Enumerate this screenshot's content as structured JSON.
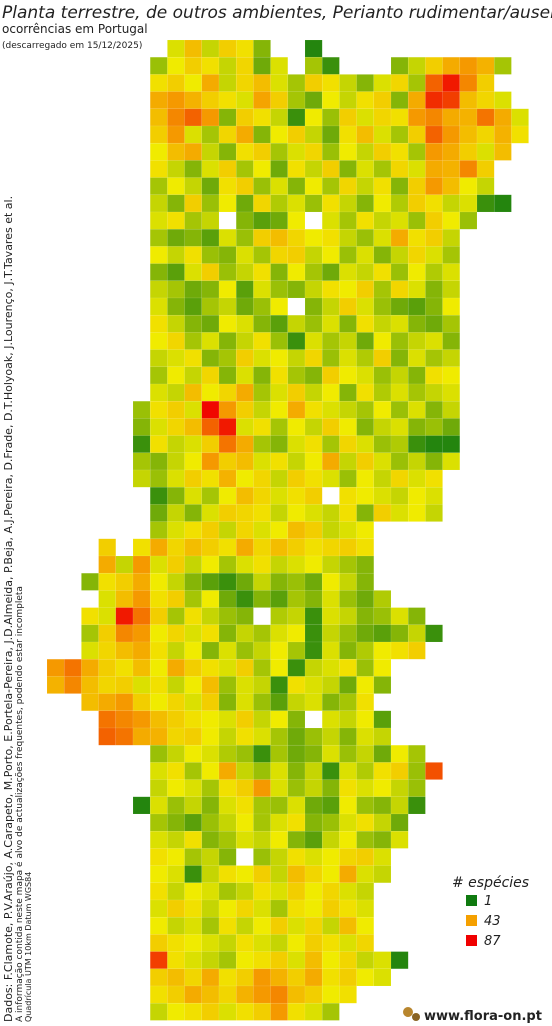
{
  "header": {
    "title": "Planta terrestre, de outros ambientes, Perianto rudimentar/ausente ou",
    "subtitle": "ocorrências em Portugal",
    "date": "(descarregado em 15/12/2025)"
  },
  "credits": [
    "Dados: F.Clamote, P.V.Araújo, A.Carapeto, M.Porto, E.Portela-Pereira, J.D.Almeida, P.Beja, A.J.Pereira, D.Frade, D.T.Holyoak, J.Lourenço, J.T.Tavares et al.",
    "A informação contida neste mapa é alvo de actualizações frequentes, podendo estar incompleta",
    "Quadrícula UTM 10km Datum WGS84"
  ],
  "legend": {
    "title": "# espécies",
    "items": [
      {
        "value": 1,
        "color": "#0f7a0f"
      },
      {
        "value": 43,
        "color": "#f5a000"
      },
      {
        "value": 87,
        "color": "#f00000"
      }
    ]
  },
  "logo": "www.flora-on.pt",
  "map": {
    "cells": [
      [
        null,
        null,
        null,
        null,
        null,
        null,
        null,
        20,
        35,
        18,
        30,
        25,
        12,
        null,
        null,
        3
      ],
      [
        null,
        null,
        null,
        null,
        null,
        null,
        14,
        22,
        30,
        25,
        18,
        28,
        10,
        20,
        null,
        15,
        5,
        null,
        null,
        null,
        12,
        18,
        30,
        40,
        45,
        38,
        15
      ],
      [
        null,
        null,
        null,
        null,
        null,
        null,
        25,
        30,
        22,
        40,
        18,
        28,
        35,
        20,
        15,
        30,
        25,
        18,
        12,
        20,
        28,
        15,
        60,
        80,
        50,
        30
      ],
      [
        null,
        null,
        null,
        null,
        null,
        null,
        40,
        45,
        38,
        30,
        25,
        20,
        42,
        30,
        15,
        10,
        22,
        18,
        25,
        30,
        12,
        40,
        75,
        70,
        35,
        28,
        20
      ],
      [
        null,
        null,
        null,
        null,
        null,
        null,
        35,
        50,
        60,
        45,
        12,
        30,
        25,
        18,
        5,
        22,
        14,
        30,
        20,
        28,
        25,
        45,
        50,
        40,
        38,
        55,
        40,
        20
      ],
      [
        null,
        null,
        null,
        null,
        null,
        null,
        30,
        45,
        20,
        15,
        28,
        40,
        12,
        22,
        30,
        18,
        10,
        25,
        35,
        20,
        15,
        30,
        60,
        45,
        35,
        28,
        38,
        25
      ],
      [
        null,
        null,
        null,
        null,
        null,
        null,
        22,
        35,
        40,
        18,
        12,
        25,
        30,
        15,
        20,
        28,
        14,
        22,
        18,
        30,
        25,
        15,
        45,
        40,
        30,
        20,
        35
      ],
      [
        null,
        null,
        null,
        null,
        null,
        null,
        25,
        18,
        12,
        20,
        30,
        15,
        22,
        10,
        25,
        18,
        30,
        12,
        20,
        15,
        28,
        20,
        40,
        38,
        50,
        30
      ],
      [
        null,
        null,
        null,
        null,
        null,
        null,
        15,
        22,
        18,
        10,
        25,
        30,
        14,
        20,
        12,
        22,
        15,
        28,
        18,
        25,
        12,
        30,
        45,
        35,
        22,
        18
      ],
      [
        null,
        null,
        null,
        null,
        null,
        null,
        18,
        12,
        30,
        14,
        22,
        10,
        28,
        16,
        20,
        14,
        25,
        18,
        12,
        22,
        16,
        30,
        25,
        18,
        20,
        5,
        3
      ],
      [
        null,
        null,
        null,
        null,
        null,
        null,
        20,
        25,
        15,
        18,
        null,
        12,
        8,
        10,
        22,
        null,
        20,
        15,
        25,
        18,
        20,
        14,
        30,
        22,
        14
      ],
      [
        null,
        null,
        null,
        null,
        null,
        null,
        15,
        10,
        12,
        8,
        20,
        14,
        30,
        35,
        28,
        22,
        25,
        18,
        14,
        20,
        40,
        25,
        30,
        18
      ],
      [
        null,
        null,
        null,
        null,
        null,
        null,
        22,
        18,
        25,
        14,
        12,
        20,
        15,
        28,
        30,
        18,
        22,
        14,
        20,
        12,
        18,
        28,
        20,
        15
      ],
      [
        null,
        null,
        null,
        null,
        null,
        null,
        12,
        8,
        20,
        30,
        14,
        18,
        25,
        12,
        22,
        15,
        10,
        20,
        18,
        25,
        14,
        22,
        16,
        20
      ],
      [
        null,
        null,
        null,
        null,
        null,
        null,
        18,
        15,
        10,
        12,
        22,
        8,
        20,
        14,
        12,
        18,
        25,
        22,
        30,
        15,
        28,
        20,
        12,
        18
      ],
      [
        null,
        null,
        null,
        null,
        null,
        null,
        20,
        12,
        8,
        15,
        18,
        10,
        14,
        22,
        null,
        12,
        18,
        30,
        20,
        14,
        10,
        8,
        12,
        22
      ],
      [
        null,
        null,
        null,
        null,
        null,
        null,
        25,
        18,
        12,
        10,
        22,
        20,
        12,
        8,
        18,
        14,
        20,
        12,
        25,
        18,
        20,
        12,
        10,
        15
      ],
      [
        null,
        null,
        null,
        null,
        null,
        null,
        22,
        28,
        15,
        20,
        12,
        18,
        25,
        14,
        5,
        20,
        15,
        18,
        10,
        22,
        14,
        18,
        20,
        12
      ],
      [
        null,
        null,
        null,
        null,
        null,
        null,
        18,
        20,
        25,
        12,
        15,
        30,
        20,
        22,
        18,
        28,
        14,
        20,
        16,
        30,
        12,
        20,
        15,
        18
      ],
      [
        null,
        null,
        null,
        null,
        null,
        null,
        15,
        22,
        18,
        28,
        12,
        20,
        12,
        25,
        15,
        12,
        30,
        22,
        20,
        14,
        18,
        12,
        25,
        22
      ],
      [
        null,
        null,
        null,
        null,
        null,
        null,
        20,
        18,
        35,
        22,
        28,
        40,
        15,
        20,
        30,
        18,
        22,
        12,
        25,
        16,
        20,
        15,
        18,
        20
      ],
      [
        null,
        null,
        null,
        null,
        null,
        14,
        25,
        30,
        20,
        85,
        45,
        30,
        18,
        22,
        40,
        25,
        20,
        18,
        15,
        22,
        14,
        20,
        12,
        18
      ],
      [
        null,
        null,
        null,
        null,
        null,
        12,
        20,
        28,
        35,
        60,
        80,
        20,
        25,
        15,
        22,
        18,
        30,
        22,
        12,
        18,
        20,
        12,
        14,
        10
      ],
      [
        null,
        null,
        null,
        null,
        null,
        5,
        25,
        18,
        20,
        30,
        55,
        40,
        15,
        12,
        20,
        25,
        15,
        28,
        20,
        14,
        16,
        5,
        3,
        3
      ],
      [
        null,
        null,
        null,
        null,
        null,
        15,
        12,
        18,
        22,
        45,
        30,
        35,
        20,
        25,
        18,
        22,
        40,
        18,
        30,
        20,
        14,
        18,
        12,
        20
      ],
      [
        null,
        null,
        null,
        null,
        null,
        18,
        14,
        20,
        30,
        25,
        38,
        22,
        28,
        18,
        30,
        25,
        20,
        14,
        22,
        18,
        28,
        20,
        25,
        null
      ],
      [
        null,
        null,
        null,
        null,
        null,
        null,
        5,
        12,
        20,
        15,
        22,
        35,
        28,
        20,
        25,
        30,
        null,
        25,
        22,
        20,
        18,
        22,
        20
      ],
      [
        null,
        null,
        null,
        null,
        null,
        null,
        10,
        18,
        12,
        20,
        30,
        28,
        25,
        18,
        22,
        20,
        18,
        25,
        12,
        30,
        20,
        22,
        18
      ],
      [
        null,
        null,
        null,
        null,
        null,
        null,
        15,
        20,
        25,
        30,
        18,
        28,
        20,
        22,
        35,
        30,
        18,
        20,
        22,
        null
      ],
      [
        null,
        null,
        null,
        30,
        null,
        25,
        40,
        28,
        35,
        30,
        25,
        40,
        28,
        35,
        30,
        25,
        28,
        30,
        25,
        null
      ],
      [
        null,
        null,
        null,
        40,
        18,
        45,
        20,
        30,
        18,
        22,
        15,
        20,
        25,
        18,
        20,
        22,
        18,
        15,
        12,
        null
      ],
      [
        null,
        null,
        12,
        25,
        30,
        40,
        22,
        18,
        12,
        8,
        5,
        10,
        18,
        12,
        14,
        10,
        22,
        18,
        12
      ],
      [
        null,
        null,
        null,
        20,
        35,
        45,
        25,
        30,
        15,
        22,
        10,
        5,
        12,
        8,
        15,
        12,
        20,
        14,
        10,
        16
      ],
      [
        null,
        null,
        25,
        20,
        80,
        55,
        30,
        15,
        25,
        18,
        14,
        12,
        null,
        16,
        18,
        5,
        20,
        18,
        12,
        14,
        20,
        12
      ],
      [
        null,
        null,
        15,
        30,
        50,
        45,
        22,
        28,
        20,
        25,
        12,
        18,
        15,
        20,
        22,
        5,
        18,
        14,
        10,
        8,
        12,
        18,
        5
      ],
      [
        null,
        null,
        20,
        28,
        35,
        40,
        25,
        18,
        22,
        12,
        20,
        14,
        18,
        22,
        15,
        5,
        20,
        12,
        16,
        22,
        25,
        30
      ],
      [
        45,
        55,
        40,
        30,
        25,
        35,
        22,
        40,
        30,
        25,
        20,
        30,
        15,
        22,
        5,
        18,
        20,
        25,
        14,
        22
      ],
      [
        38,
        50,
        35,
        28,
        30,
        20,
        25,
        18,
        22,
        35,
        14,
        20,
        18,
        5,
        25,
        20,
        18,
        10,
        22,
        12
      ],
      [
        null,
        null,
        35,
        40,
        45,
        30,
        22,
        28,
        20,
        30,
        12,
        20,
        14,
        8,
        18,
        20,
        12,
        15,
        25
      ],
      [
        null,
        null,
        null,
        55,
        50,
        45,
        35,
        30,
        25,
        22,
        20,
        30,
        18,
        22,
        12,
        null,
        20,
        18,
        22,
        8
      ],
      [
        null,
        null,
        null,
        60,
        55,
        40,
        38,
        28,
        30,
        22,
        18,
        25,
        20,
        15,
        10,
        14,
        18,
        12,
        20,
        18
      ],
      [
        null,
        null,
        null,
        null,
        null,
        null,
        14,
        18,
        22,
        20,
        16,
        14,
        5,
        15,
        10,
        12,
        20,
        14,
        18,
        10,
        22,
        15
      ],
      [
        null,
        null,
        null,
        null,
        null,
        null,
        20,
        25,
        15,
        22,
        40,
        18,
        14,
        20,
        12,
        18,
        5,
        20,
        16,
        25,
        30,
        14,
        65
      ],
      [
        null,
        null,
        null,
        null,
        null,
        null,
        18,
        22,
        20,
        15,
        25,
        30,
        45,
        20,
        14,
        18,
        12,
        25,
        20,
        22,
        18,
        14
      ],
      [
        null,
        null,
        null,
        null,
        null,
        3,
        20,
        14,
        18,
        12,
        20,
        25,
        15,
        14,
        20,
        10,
        8,
        22,
        14,
        12,
        18,
        5
      ],
      [
        null,
        null,
        null,
        null,
        null,
        null,
        15,
        12,
        8,
        14,
        18,
        22,
        15,
        20,
        25,
        12,
        14,
        20,
        25,
        18,
        10
      ],
      [
        null,
        null,
        null,
        null,
        null,
        null,
        20,
        18,
        25,
        12,
        15,
        20,
        18,
        22,
        12,
        8,
        18,
        22,
        14,
        12,
        20
      ],
      [
        null,
        null,
        null,
        null,
        null,
        null,
        25,
        22,
        15,
        18,
        12,
        null,
        14,
        18,
        25,
        20,
        22,
        28,
        30,
        20
      ],
      [
        null,
        null,
        null,
        null,
        null,
        null,
        22,
        20,
        5,
        18,
        25,
        22,
        30,
        18,
        35,
        28,
        22,
        40,
        20,
        18
      ],
      [
        null,
        null,
        null,
        null,
        null,
        null,
        25,
        18,
        22,
        20,
        15,
        18,
        25,
        20,
        30,
        22,
        28,
        20,
        18
      ],
      [
        null,
        null,
        null,
        null,
        null,
        null,
        20,
        30,
        25,
        18,
        22,
        28,
        20,
        15,
        25,
        22,
        30,
        25,
        20
      ],
      [
        null,
        null,
        null,
        null,
        null,
        null,
        22,
        18,
        20,
        15,
        25,
        18,
        22,
        30,
        20,
        28,
        18,
        35,
        22
      ],
      [
        null,
        null,
        null,
        null,
        null,
        null,
        30,
        25,
        22,
        20,
        18,
        25,
        20,
        18,
        22,
        30,
        25,
        20,
        28
      ],
      [
        null,
        null,
        null,
        null,
        null,
        null,
        70,
        25,
        20,
        18,
        15,
        22,
        25,
        30,
        20,
        35,
        22,
        28,
        18,
        20,
        3
      ],
      [
        null,
        null,
        null,
        null,
        null,
        null,
        30,
        35,
        28,
        40,
        25,
        30,
        45,
        38,
        30,
        40,
        25,
        30,
        22,
        20
      ],
      [
        null,
        null,
        null,
        null,
        null,
        null,
        25,
        30,
        40,
        35,
        28,
        38,
        45,
        50,
        35,
        30,
        22,
        25
      ],
      [
        null,
        null,
        null,
        null,
        null,
        null,
        18,
        22,
        25,
        30,
        20,
        25,
        30,
        45,
        25,
        20,
        15
      ]
    ]
  }
}
